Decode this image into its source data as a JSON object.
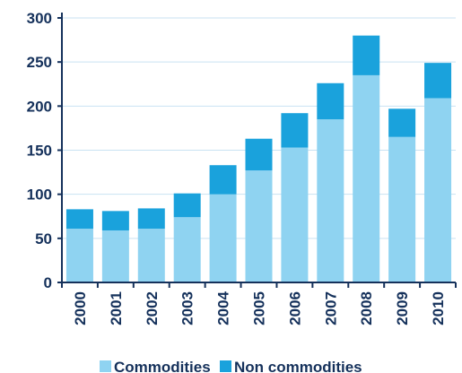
{
  "chart_data": {
    "type": "bar",
    "stacked": true,
    "categories": [
      "2000",
      "2001",
      "2002",
      "2003",
      "2004",
      "2005",
      "2006",
      "2007",
      "2008",
      "2009",
      "2010"
    ],
    "series": [
      {
        "name": "Commodities",
        "color": "#8fd3f1",
        "values": [
          61,
          59,
          61,
          74,
          100,
          127,
          153,
          185,
          235,
          165,
          209
        ]
      },
      {
        "name": "Non commodities",
        "color": "#1aa2dc",
        "values": [
          22,
          22,
          23,
          27,
          33,
          36,
          39,
          41,
          45,
          32,
          40
        ]
      }
    ],
    "ylim": [
      0,
      300
    ],
    "yticks": [
      0,
      50,
      100,
      150,
      200,
      250,
      300
    ],
    "xlabel": "",
    "ylabel": "",
    "grid": true,
    "legend": "bottom",
    "colors": {
      "axis": "#15315b",
      "grid": "#c9e2f2"
    }
  }
}
